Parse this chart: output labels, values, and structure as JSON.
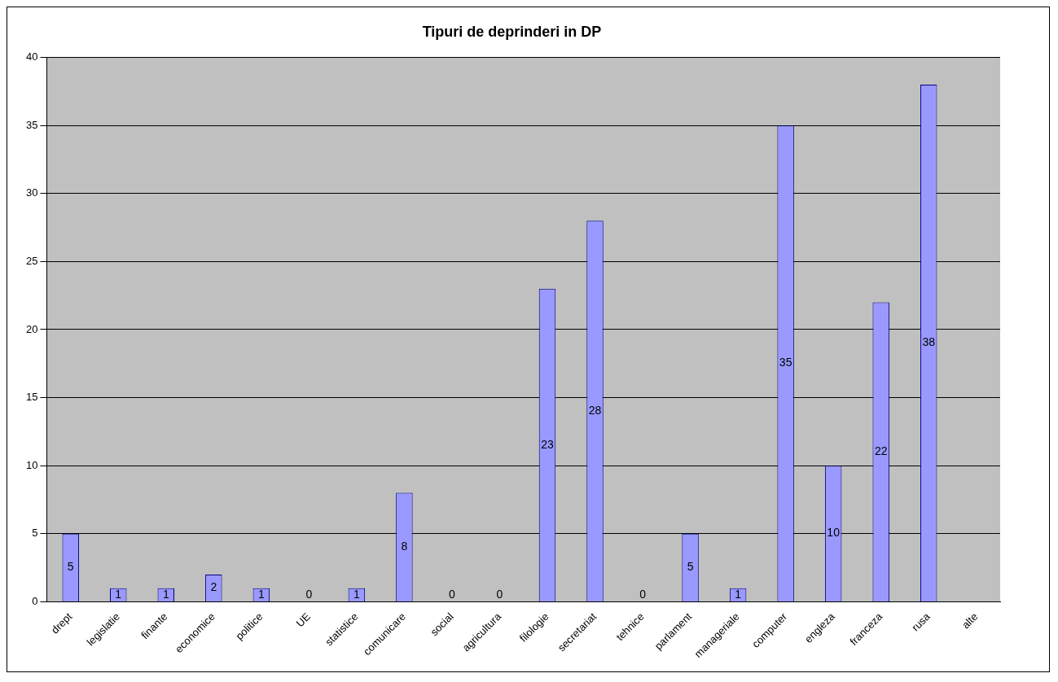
{
  "chart_data": {
    "type": "bar",
    "title": "Tipuri de deprinderi in DP",
    "categories": [
      "drept",
      "legislatie",
      "finante",
      "economice",
      "politice",
      "UE",
      "statistice",
      "comunicare",
      "social",
      "agricultura",
      "filologie",
      "secretariat",
      "tehnice",
      "parlament",
      "manageriale",
      "computer",
      "engleza",
      "franceza",
      "rusa",
      "alte"
    ],
    "values": [
      5,
      1,
      1,
      2,
      1,
      0,
      1,
      8,
      0,
      0,
      23,
      28,
      0,
      5,
      1,
      35,
      10,
      22,
      38,
      null
    ],
    "color": "#9999ff",
    "ylim": [
      0,
      40
    ],
    "yticks": [
      0,
      5,
      10,
      15,
      20,
      25,
      30,
      35,
      40
    ],
    "grid": "y",
    "legend": false,
    "data_labels": true
  }
}
